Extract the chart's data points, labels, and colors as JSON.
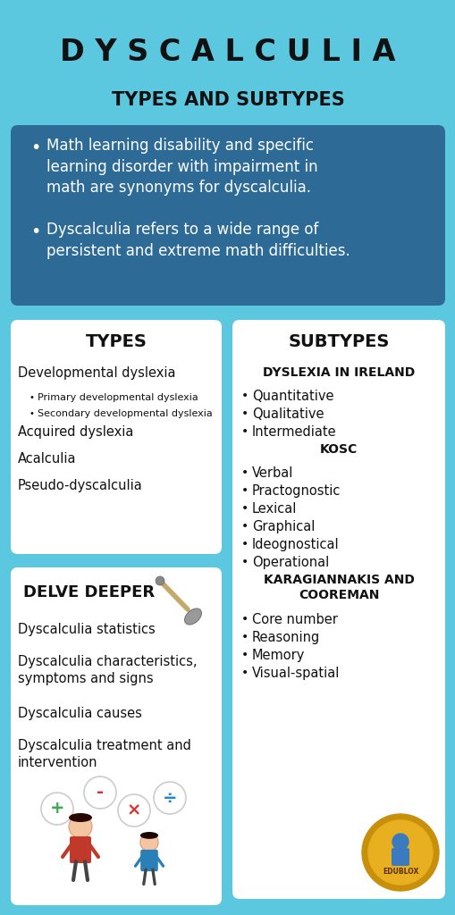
{
  "bg": "#5bc8e0",
  "dark_blue": "#2d6b96",
  "white": "#ffffff",
  "black": "#111111",
  "title1": "D Y S C A L C U L I A",
  "title2": "TYPES AND SUBTYPES",
  "b1": "Math learning disability and specific\nlearning disorder with impairment in\nmath are synonyms for dyscalculia.",
  "b2": "Dyscalculia refers to a wide range of\npersistent and extreme math difficulties.",
  "th": "TYPES",
  "types": [
    [
      0,
      "Developmental dyslexia"
    ],
    [
      1,
      "Primary developmental dyslexia"
    ],
    [
      1,
      "Secondary developmental dyslexia"
    ],
    [
      0,
      "Acquired dyslexia"
    ],
    [
      0,
      "Acalculia"
    ],
    [
      0,
      "Pseudo-dyscalculia"
    ]
  ],
  "sh": "SUBTYPES",
  "subs": [
    [
      "H",
      "DYSLEXIA IN IRELAND"
    ],
    [
      1,
      "Quantitative"
    ],
    [
      1,
      "Qualitative"
    ],
    [
      1,
      "Intermediate"
    ],
    [
      "H",
      "KOSC"
    ],
    [
      1,
      "Verbal"
    ],
    [
      1,
      "Practognostic"
    ],
    [
      1,
      "Lexical"
    ],
    [
      1,
      "Graphical"
    ],
    [
      1,
      "Ideognostical"
    ],
    [
      1,
      "Operational"
    ],
    [
      "H",
      "KARAGIANNAKIS AND\nCOOREMAN"
    ],
    [
      1,
      "Core number"
    ],
    [
      1,
      "Reasoning"
    ],
    [
      1,
      "Memory"
    ],
    [
      1,
      "Visual-spatial"
    ]
  ],
  "dh": "DELVE DEEPER",
  "delve": [
    "Dyscalculia statistics",
    "Dyscalculia characteristics,\nsymptoms and signs",
    "Dyscalculia causes",
    "Dyscalculia treatment and\nintervention"
  ],
  "badge_gold": "#c8900a",
  "badge_yellow": "#e8b020",
  "shovel_tan": "#c4a96a",
  "shovel_gray": "#999999",
  "bubble_colors": [
    "#3aaa50",
    "#e03030",
    "#e03030",
    "#2288cc"
  ],
  "bubble_syms": [
    "+",
    "-",
    "×",
    "÷"
  ]
}
